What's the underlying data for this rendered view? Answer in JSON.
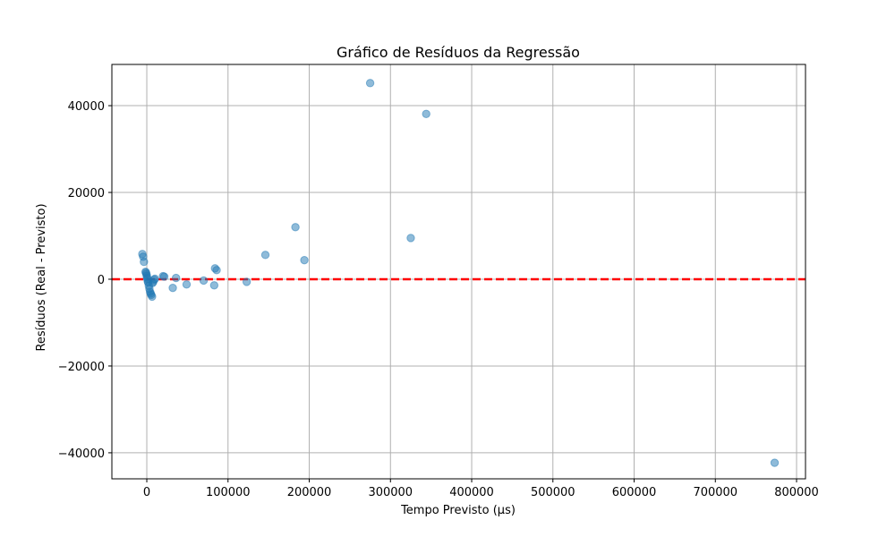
{
  "chart_data": {
    "type": "scatter",
    "title": "Gráfico de Resíduos da Regressão",
    "xlabel": "Tempo Previsto (µs)",
    "ylabel": "Resíduos (Real - Previsto)",
    "xlim": [
      -43000,
      811000
    ],
    "ylim": [
      -46000,
      49500
    ],
    "xticks": [
      0,
      100000,
      200000,
      300000,
      400000,
      500000,
      600000,
      700000,
      800000
    ],
    "xtick_labels": [
      "0",
      "100000",
      "200000",
      "300000",
      "400000",
      "500000",
      "600000",
      "700000",
      "800000"
    ],
    "yticks": [
      -40000,
      -20000,
      0,
      20000,
      40000
    ],
    "ytick_labels": [
      "−40000",
      "−20000",
      "0",
      "20000",
      "40000"
    ],
    "grid": true,
    "reference_line": {
      "y": 0,
      "color": "#ff0000",
      "style": "dashed"
    },
    "point_color": "#1f77b4",
    "points": [
      {
        "x": -5500,
        "y": 5800
      },
      {
        "x": -4500,
        "y": 5200
      },
      {
        "x": -3500,
        "y": 4000
      },
      {
        "x": -1500,
        "y": 1700
      },
      {
        "x": -1000,
        "y": 1500
      },
      {
        "x": -500,
        "y": 1200
      },
      {
        "x": 0,
        "y": 800
      },
      {
        "x": 300,
        "y": 400
      },
      {
        "x": 800,
        "y": 0
      },
      {
        "x": 1200,
        "y": -500
      },
      {
        "x": 1800,
        "y": -800
      },
      {
        "x": 2500,
        "y": -1500
      },
      {
        "x": 3200,
        "y": -2200
      },
      {
        "x": 4000,
        "y": -2900
      },
      {
        "x": 4800,
        "y": -3300
      },
      {
        "x": 5500,
        "y": -3600
      },
      {
        "x": 6500,
        "y": -4000
      },
      {
        "x": 7000,
        "y": -900
      },
      {
        "x": 8000,
        "y": -600
      },
      {
        "x": 9000,
        "y": -100
      },
      {
        "x": 10000,
        "y": 100
      },
      {
        "x": 20000,
        "y": 700
      },
      {
        "x": 21500,
        "y": 600
      },
      {
        "x": 32000,
        "y": -2000
      },
      {
        "x": 36000,
        "y": 300
      },
      {
        "x": 49000,
        "y": -1200
      },
      {
        "x": 70000,
        "y": -300
      },
      {
        "x": 83000,
        "y": -1400
      },
      {
        "x": 84000,
        "y": 2500
      },
      {
        "x": 86000,
        "y": 2100
      },
      {
        "x": 123000,
        "y": -600
      },
      {
        "x": 146000,
        "y": 5600
      },
      {
        "x": 183000,
        "y": 12000
      },
      {
        "x": 194000,
        "y": 4400
      },
      {
        "x": 275000,
        "y": 45200
      },
      {
        "x": 325000,
        "y": 9500
      },
      {
        "x": 344000,
        "y": 38100
      },
      {
        "x": 773000,
        "y": -42300
      }
    ]
  }
}
